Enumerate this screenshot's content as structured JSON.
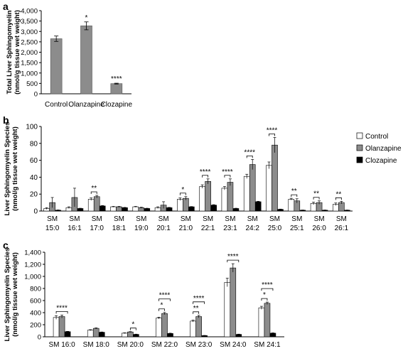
{
  "colors": {
    "control": "#ffffff",
    "olanzapine": "#8c8c8c",
    "clozapine": "#000000",
    "single": "#8c8c8c"
  },
  "chart_data": [
    {
      "type": "bar",
      "panel": "a",
      "ylabel": "Total Liver Sphingomyelin (nmol/g tissue wet weight)",
      "ylabel_lines": [
        "Total Liver Sphingomyelin",
        "(nmol/g tissue wet weight)"
      ],
      "ylim": [
        0,
        4000
      ],
      "yticks": [
        0,
        500,
        1000,
        1500,
        2000,
        2500,
        3000,
        3500,
        4000
      ],
      "categories": [
        "Control",
        "Olanzapine",
        "Clozapine"
      ],
      "values": [
        2650,
        3270,
        490
      ],
      "errors": [
        130,
        190,
        20
      ],
      "significance": [
        "",
        "*",
        "****"
      ]
    },
    {
      "type": "bar",
      "panel": "b",
      "ylabel": "Liver Sphingomyelin Species (nmol/g tissue wet weight)",
      "ylabel_lines": [
        "Liver Sphingomyelin Species",
        "(nmol/g tissue wet weight)"
      ],
      "ylim": [
        0,
        100
      ],
      "yticks": [
        0,
        20,
        40,
        60,
        80,
        100
      ],
      "legend": [
        "Control",
        "Olanzapine",
        "Clozapine"
      ],
      "legend_position": "right",
      "categories": [
        "SM 15:0",
        "SM 16:1",
        "SM 17:0",
        "SM 18:1",
        "SM 19:0",
        "SM 20:1",
        "SM 21:0",
        "SM 22:1",
        "SM 23:1",
        "SM 24:2",
        "SM 25:0",
        "SM 25:1",
        "SM 26:0",
        "SM 26:1"
      ],
      "series": [
        {
          "name": "Control",
          "values": [
            3,
            4,
            14,
            5,
            5,
            4,
            14,
            29,
            27,
            41,
            54,
            14,
            9,
            8
          ],
          "errors": [
            1,
            1,
            1.5,
            0.5,
            0.5,
            1,
            1.5,
            2,
            2,
            2.5,
            4,
            1,
            1.5,
            1.5
          ]
        },
        {
          "name": "Olanzapine",
          "values": [
            10,
            16,
            17,
            5,
            4,
            7,
            15,
            35,
            34,
            55,
            78,
            12,
            10,
            10
          ],
          "errors": [
            6,
            11,
            1.5,
            0.5,
            0.5,
            4,
            2,
            3,
            4,
            6,
            9,
            2.5,
            2,
            1.5
          ]
        },
        {
          "name": "Clozapine",
          "values": [
            1,
            3,
            6,
            4,
            3,
            4,
            5,
            7,
            3,
            11,
            2,
            1,
            1,
            1
          ],
          "errors": [
            0.3,
            0.3,
            0.5,
            0.3,
            0.3,
            0.3,
            0.3,
            0.5,
            0.3,
            0.5,
            0.3,
            0.2,
            0.2,
            0.2
          ]
        }
      ],
      "significance": [
        {
          "category": 2,
          "label": "**"
        },
        {
          "category": 6,
          "label": "*"
        },
        {
          "category": 7,
          "label": "****"
        },
        {
          "category": 8,
          "label": "****"
        },
        {
          "category": 9,
          "label": "****"
        },
        {
          "category": 10,
          "label": "****"
        },
        {
          "category": 11,
          "label": "**"
        },
        {
          "category": 12,
          "label": "**"
        },
        {
          "category": 13,
          "label": "**"
        }
      ]
    },
    {
      "type": "bar",
      "panel": "c",
      "ylabel": "Liver Sphingomyelin Species (nmol/g tissue wet weight)",
      "ylabel_lines": [
        "Liver Sphingomyelin Species",
        "(nmol/g tissue wet weight)"
      ],
      "ylim": [
        0,
        1400
      ],
      "yticks": [
        0,
        200,
        400,
        600,
        800,
        1000,
        1200,
        1400
      ],
      "categories": [
        "SM 16:0",
        "SM 18:0",
        "SM 20:0",
        "SM 22:0",
        "SM 23:0",
        "SM 24:0",
        "SM 24:1"
      ],
      "series": [
        {
          "name": "Control",
          "values": [
            320,
            110,
            60,
            310,
            260,
            900,
            480
          ],
          "errors": [
            30,
            8,
            6,
            15,
            15,
            70,
            25
          ]
        },
        {
          "name": "Olanzapine",
          "values": [
            335,
            140,
            80,
            385,
            335,
            1140,
            555
          ],
          "errors": [
            25,
            8,
            6,
            18,
            20,
            70,
            20
          ]
        },
        {
          "name": "Clozapine",
          "values": [
            85,
            75,
            40,
            55,
            20,
            40,
            60
          ],
          "errors": [
            5,
            5,
            4,
            5,
            3,
            4,
            5
          ]
        }
      ],
      "significance": [
        {
          "category": 0,
          "brackets": [
            {
              "a": 0,
              "b": 2,
              "label": "****"
            }
          ]
        },
        {
          "category": 2,
          "brackets": [
            {
              "a": 1,
              "b": 2,
              "label": "*"
            }
          ]
        },
        {
          "category": 3,
          "brackets": [
            {
              "a": 0,
              "b": 1,
              "label": "*"
            },
            {
              "a": 0,
              "b": 2,
              "label": "****"
            }
          ]
        },
        {
          "category": 4,
          "brackets": [
            {
              "a": 0,
              "b": 1,
              "label": "**"
            },
            {
              "a": 0,
              "b": 2,
              "label": "****"
            }
          ]
        },
        {
          "category": 5,
          "brackets": [
            {
              "a": 0,
              "b": 2,
              "label": "****"
            }
          ]
        },
        {
          "category": 6,
          "brackets": [
            {
              "a": 0,
              "b": 1,
              "label": "*"
            },
            {
              "a": 0,
              "b": 2,
              "label": "****"
            }
          ]
        }
      ]
    }
  ],
  "panel_labels": [
    "a",
    "b",
    "c"
  ]
}
